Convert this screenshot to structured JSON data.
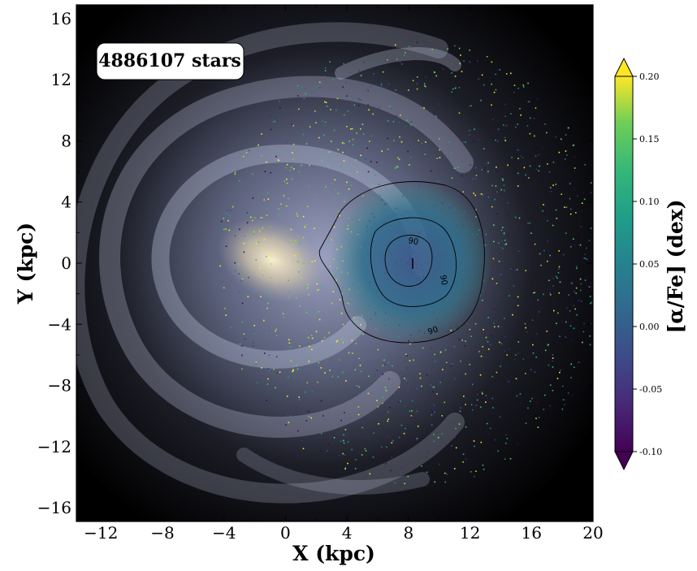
{
  "chart_data": {
    "type": "scatter",
    "annotation": "4886107 stars",
    "xlabel": "X (kpc)",
    "ylabel": "Y (kpc)",
    "xlim": [
      -13.6,
      20
    ],
    "ylim": [
      -16.9,
      16.9
    ],
    "x_ticks": [
      -12,
      -8,
      -4,
      0,
      4,
      8,
      12,
      16,
      20
    ],
    "y_ticks": [
      -16,
      -12,
      -8,
      -4,
      0,
      4,
      8,
      12,
      16
    ],
    "x_tick_labels": [
      "−12",
      "−8",
      "−4",
      "0",
      "4",
      "8",
      "12",
      "16",
      "20"
    ],
    "y_tick_labels": [
      "−16",
      "−12",
      "−8",
      "−4",
      "0",
      "4",
      "8",
      "12",
      "16"
    ],
    "colorbar": {
      "label": "[α/Fe] (dex)",
      "colormap": "viridis",
      "range": [
        -0.1,
        0.2
      ],
      "ticks": [
        -0.1,
        -0.05,
        0.0,
        0.05,
        0.1,
        0.15,
        0.2
      ],
      "tick_labels": [
        "-0.10",
        "-0.05",
        "0.00",
        "0.05",
        "0.10",
        "0.15",
        "0.20"
      ],
      "extend": "both"
    },
    "sun_position": [
      8.3,
      0
    ],
    "contour_label": "90",
    "background": "Milky Way spiral galaxy artist illustration",
    "colors": {
      "viridis_low": "#440154",
      "viridis_mid": "#21918c",
      "viridis_high": "#fde725"
    }
  }
}
